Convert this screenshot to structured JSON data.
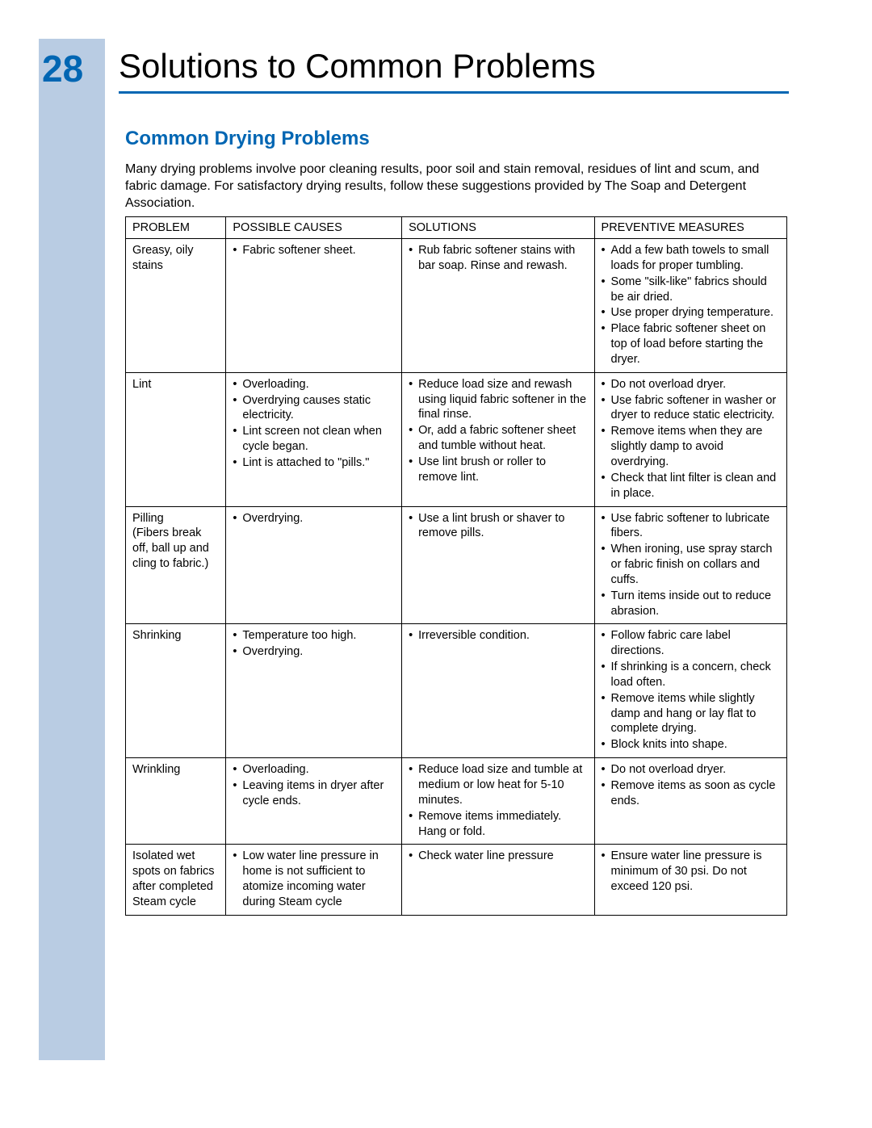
{
  "page": {
    "number": "28",
    "title": "Solutions to Common Problems"
  },
  "section": {
    "heading": "Common Drying Problems",
    "intro": "Many drying problems involve poor cleaning results, poor soil and stain removal, residues of lint and scum, and fabric damage. For satisfactory drying results, follow these suggestions provided by The Soap and Detergent Association."
  },
  "table": {
    "headers": {
      "problem": "PROBLEM",
      "causes": "POSSIBLE CAUSES",
      "solutions": "SOLUTIONS",
      "preventive": "PREVENTIVE MEASURES"
    },
    "rows": [
      {
        "problem": "Greasy, oily stains",
        "causes": [
          "Fabric softener sheet."
        ],
        "solutions": [
          "Rub fabric softener stains with bar soap. Rinse and rewash."
        ],
        "preventive": [
          "Add a few bath towels to small loads for proper tumbling.",
          "Some \"silk-like\" fabrics should be air dried.",
          "Use proper drying temperature.",
          "Place fabric softener sheet on top of load before starting the dryer."
        ]
      },
      {
        "problem": "Lint",
        "causes": [
          "Overloading.",
          "Overdrying causes static electricity.",
          "Lint screen not clean when cycle began.",
          "Lint is attached to \"pills.\""
        ],
        "solutions": [
          "Reduce load size and rewash using liquid fabric softener in the final rinse.",
          "Or, add a fabric softener sheet and tumble without heat.",
          "Use lint brush or roller to remove lint."
        ],
        "preventive": [
          "Do not overload dryer.",
          "Use fabric softener in washer or dryer to reduce static electricity.",
          "Remove items when they are slightly damp to avoid overdrying.",
          "Check that lint filter is clean and in place."
        ]
      },
      {
        "problem": "Pilling\n(Fibers break off, ball up and cling to fabric.)",
        "causes": [
          "Overdrying."
        ],
        "solutions": [
          "Use a lint brush or shaver to remove pills."
        ],
        "preventive": [
          "Use fabric softener to lubricate fibers.",
          "When ironing, use spray starch or fabric finish on collars and cuffs.",
          "Turn items inside out to reduce abrasion."
        ]
      },
      {
        "problem": "Shrinking",
        "causes": [
          "Temperature too high.",
          "Overdrying."
        ],
        "solutions": [
          "Irreversible condition."
        ],
        "preventive": [
          "Follow fabric care label directions.",
          "If shrinking is a concern, check load often.",
          "Remove items while slightly damp and hang or lay flat to complete drying.",
          "Block knits into shape."
        ]
      },
      {
        "problem": "Wrinkling",
        "causes": [
          "Overloading.",
          "Leaving items in dryer after cycle ends."
        ],
        "solutions": [
          "Reduce load size and tumble at medium or low heat for 5-10 minutes.",
          "Remove items immediately. Hang or fold."
        ],
        "preventive": [
          "Do not overload dryer.",
          "Remove items as soon as cycle ends."
        ]
      },
      {
        "problem": "Isolated wet spots on fabrics after completed Steam cycle",
        "causes": [
          "Low water line pressure in home is not sufficient to atomize incoming water during Steam cycle"
        ],
        "solutions": [
          "Check water line pressure"
        ],
        "preventive": [
          "Ensure water line pressure is minimum of 30 psi. Do not exceed 120 psi."
        ]
      }
    ]
  },
  "colors": {
    "sidebar": "#b9cce3",
    "accent": "#0066b3",
    "text": "#000000",
    "background": "#ffffff"
  }
}
